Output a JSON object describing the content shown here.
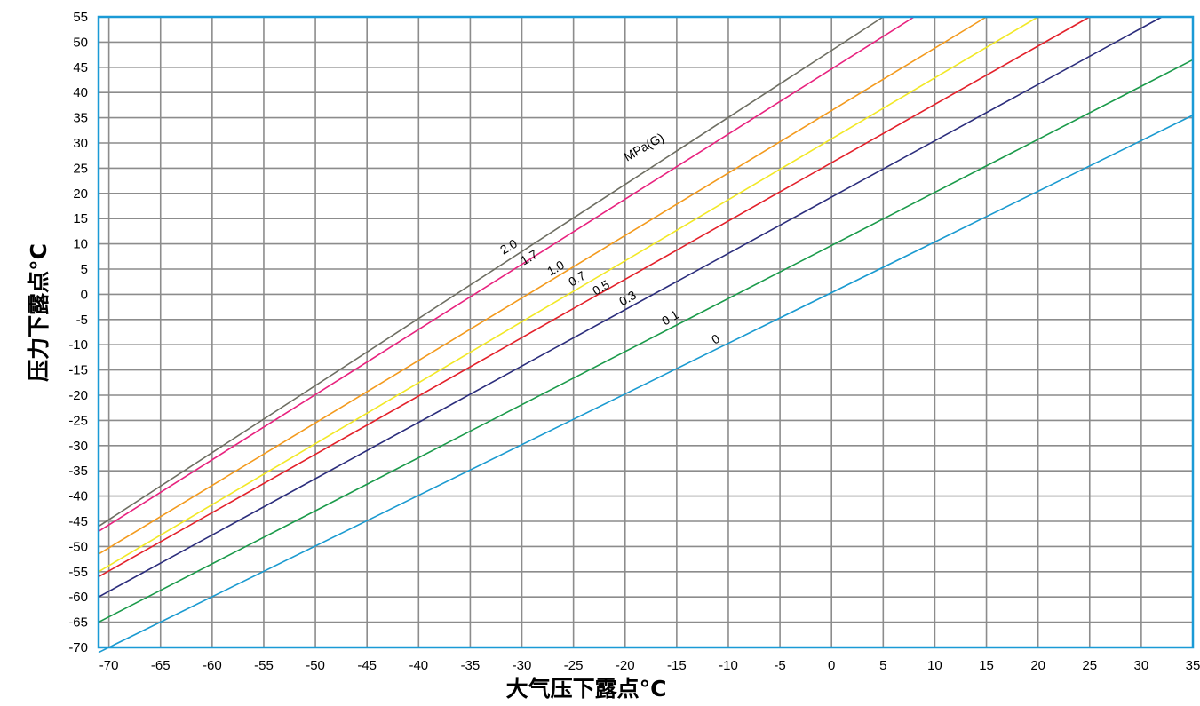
{
  "chart_data": {
    "type": "line",
    "title": "",
    "xlabel": "大气压下露点°C",
    "ylabel": "压力下露点°C",
    "xlim": [
      -71,
      35
    ],
    "ylim": [
      -70,
      55
    ],
    "x_ticks": [
      -70,
      -65,
      -60,
      -55,
      -50,
      -45,
      -40,
      -35,
      -30,
      -25,
      -20,
      -15,
      -10,
      -5,
      0,
      5,
      10,
      15,
      20,
      25,
      30,
      35
    ],
    "y_ticks": [
      55,
      50,
      45,
      40,
      35,
      30,
      25,
      20,
      15,
      10,
      5,
      0,
      -5,
      -10,
      -15,
      -20,
      -25,
      -30,
      -35,
      -40,
      -45,
      -50,
      -55,
      -60,
      -65,
      -70
    ],
    "grid": true,
    "frame_color": "#1a9ad6",
    "grid_color": "#8c8c8c",
    "unit_label": "MPa(G)",
    "series": [
      {
        "name": "0",
        "color": "#1a9ad0",
        "x": [
          -71,
          35
        ],
        "y": [
          -71,
          35.5
        ]
      },
      {
        "name": "0.1",
        "color": "#1a9a4a",
        "x": [
          -71,
          35
        ],
        "y": [
          -65,
          46.5
        ]
      },
      {
        "name": "0.3",
        "color": "#2b2d7c",
        "x": [
          -71,
          32
        ],
        "y": [
          -60,
          55
        ]
      },
      {
        "name": "0.5",
        "color": "#e3202a",
        "x": [
          -71,
          25
        ],
        "y": [
          -56,
          55
        ]
      },
      {
        "name": "0.7",
        "color": "#f2e826",
        "x": [
          -71,
          20
        ],
        "y": [
          -55,
          55
        ]
      },
      {
        "name": "1.0",
        "color": "#f39a1d",
        "x": [
          -71,
          15
        ],
        "y": [
          -51.5,
          55
        ]
      },
      {
        "name": "1.7",
        "color": "#e8227e",
        "x": [
          -71,
          8
        ],
        "y": [
          -47,
          55
        ]
      },
      {
        "name": "2.0",
        "color": "#6e6e62",
        "x": [
          -71,
          5
        ],
        "y": [
          -46,
          55
        ]
      }
    ]
  }
}
